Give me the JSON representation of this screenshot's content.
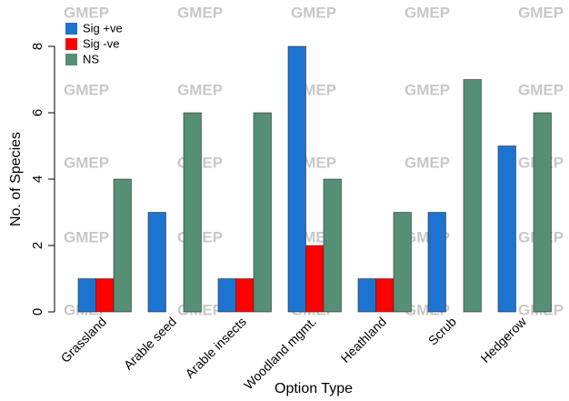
{
  "chart_data": {
    "type": "bar",
    "watermark": "GMEP",
    "x_label": "Option Type",
    "y_label": "No. of Species",
    "categories": [
      "Grassland",
      "Arable seed",
      "Arable  insects",
      "Woodland mgmt.",
      "Heathland",
      "Scrub",
      "Hedgerow"
    ],
    "series": [
      {
        "name": "Sig +ve",
        "color": "#1c74d0",
        "values": [
          1,
          3,
          1,
          8,
          1,
          3,
          5
        ]
      },
      {
        "name": "Sig -ve",
        "color": "#ff0000",
        "values": [
          1,
          0,
          1,
          2,
          1,
          0,
          0
        ]
      },
      {
        "name": "NS",
        "color": "#558f76",
        "values": [
          4,
          6,
          6,
          4,
          3,
          7,
          6
        ]
      }
    ],
    "ylim": [
      0,
      8
    ],
    "yticks": [
      0,
      2,
      4,
      6,
      8
    ],
    "legend": "top-left"
  }
}
